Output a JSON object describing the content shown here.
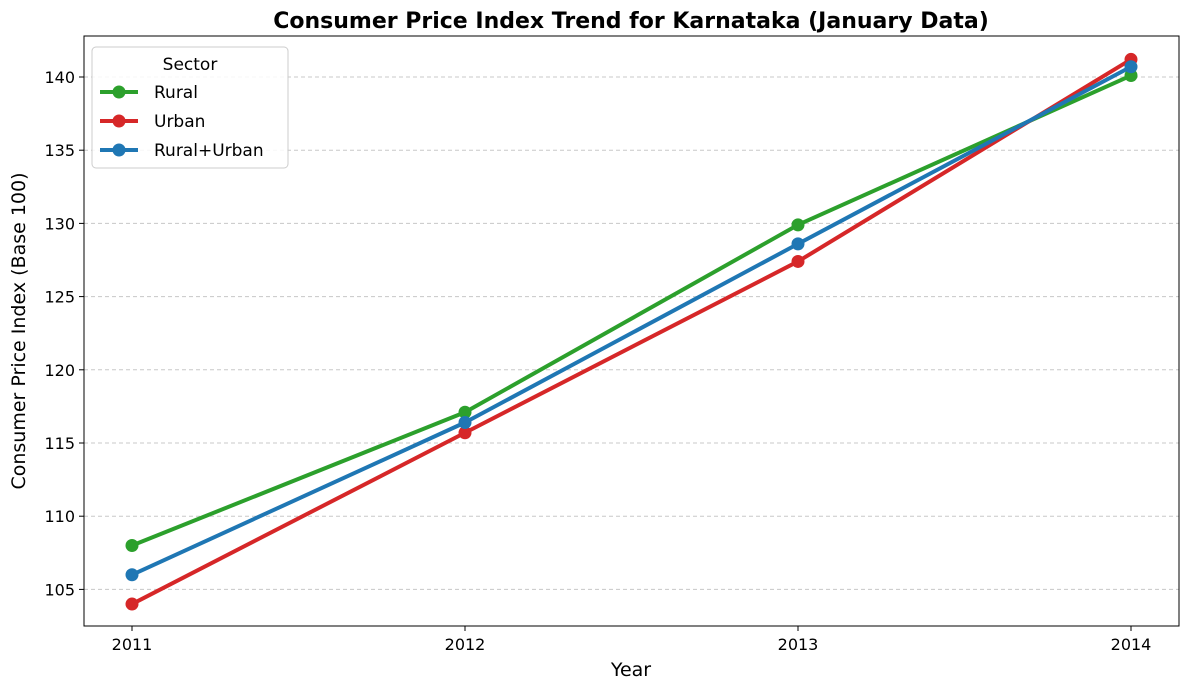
{
  "chart_data": {
    "type": "line",
    "title": "Consumer Price Index Trend for Karnataka (January Data)",
    "xlabel": "Year",
    "ylabel": "Consumer Price Index (Base 100)",
    "x": [
      "2011",
      "2012",
      "2013",
      "2014"
    ],
    "ylim": [
      102.5,
      142.8
    ],
    "yticks": [
      105,
      110,
      115,
      120,
      125,
      130,
      135,
      140
    ],
    "grid": "y-dashed",
    "legend": {
      "title": "Sector",
      "placement": "top-left"
    },
    "series": [
      {
        "name": "Rural",
        "color": "#2ca02c",
        "values": [
          108.0,
          117.1,
          129.9,
          140.1
        ]
      },
      {
        "name": "Urban",
        "color": "#d62728",
        "values": [
          104.0,
          115.7,
          127.4,
          141.2
        ]
      },
      {
        "name": "Rural+Urban",
        "color": "#1f77b4",
        "values": [
          106.0,
          116.4,
          128.6,
          140.7
        ]
      }
    ]
  }
}
